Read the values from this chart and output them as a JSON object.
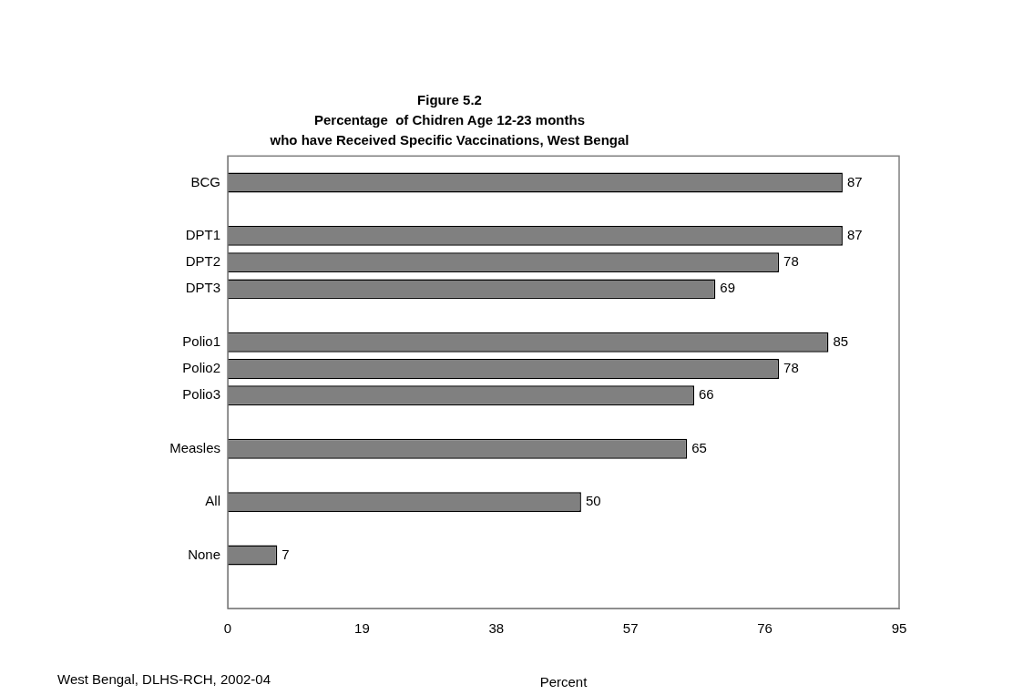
{
  "chart_data": {
    "type": "bar",
    "orientation": "horizontal",
    "title": "Figure 5.2\nPercentage  of Chidren Age 12-23 months\nwho have Received Specific Vaccinations, West Bengal",
    "categories": [
      null,
      "BCG",
      null,
      "DPT1",
      "DPT2",
      "DPT3",
      null,
      "Polio1",
      "Polio2",
      "Polio3",
      null,
      "Measles",
      null,
      "All",
      null,
      "None",
      null,
      null
    ],
    "values": [
      null,
      87,
      null,
      87,
      78,
      69,
      null,
      85,
      78,
      66,
      null,
      65,
      null,
      50,
      null,
      7,
      null,
      null
    ],
    "color": "#808080",
    "xlim": [
      0,
      95
    ],
    "xticks": [
      0,
      19,
      38,
      57,
      76,
      95
    ],
    "xlabel": "Percent",
    "grid": false,
    "legend": false,
    "data_labels": true,
    "annotations": [
      "West Bengal, DLHS-RCH, 2002-04"
    ]
  }
}
